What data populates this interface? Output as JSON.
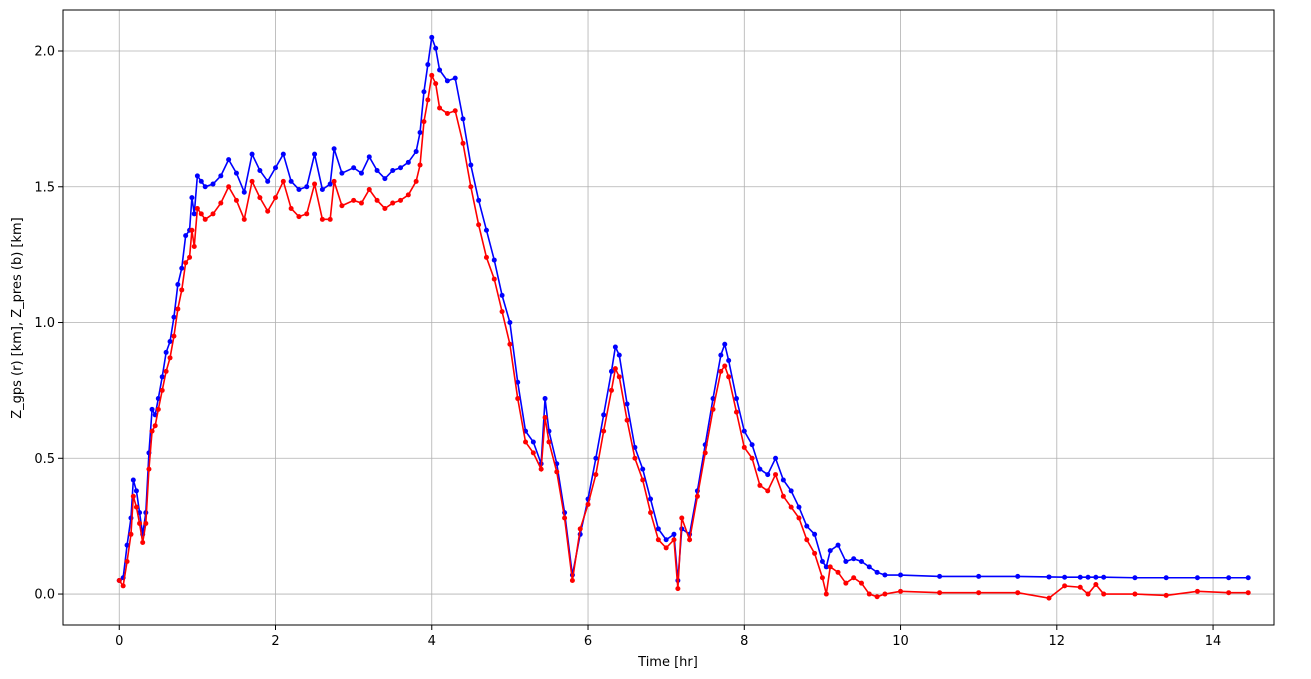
{
  "chart_data": {
    "type": "line",
    "xlabel": "Time [hr]",
    "ylabel": "Z_gps (r) [km], Z_pres (b) [km]",
    "x": [
      0,
      0.05,
      0.1,
      0.15,
      0.18,
      0.22,
      0.26,
      0.3,
      0.34,
      0.38,
      0.42,
      0.46,
      0.5,
      0.55,
      0.6,
      0.65,
      0.7,
      0.75,
      0.8,
      0.85,
      0.9,
      0.93,
      0.96,
      1.0,
      1.05,
      1.1,
      1.2,
      1.3,
      1.4,
      1.5,
      1.6,
      1.7,
      1.8,
      1.9,
      2.0,
      2.1,
      2.2,
      2.3,
      2.4,
      2.5,
      2.6,
      2.7,
      2.75,
      2.85,
      3.0,
      3.1,
      3.2,
      3.3,
      3.4,
      3.5,
      3.6,
      3.7,
      3.8,
      3.85,
      3.9,
      3.95,
      4.0,
      4.05,
      4.1,
      4.2,
      4.3,
      4.4,
      4.5,
      4.6,
      4.7,
      4.8,
      4.9,
      5.0,
      5.1,
      5.2,
      5.3,
      5.4,
      5.45,
      5.5,
      5.6,
      5.7,
      5.8,
      5.9,
      6.0,
      6.1,
      6.2,
      6.3,
      6.35,
      6.4,
      6.5,
      6.6,
      6.7,
      6.8,
      6.9,
      7.0,
      7.1,
      7.15,
      7.2,
      7.3,
      7.4,
      7.5,
      7.6,
      7.7,
      7.75,
      7.8,
      7.9,
      8.0,
      8.1,
      8.2,
      8.3,
      8.4,
      8.5,
      8.6,
      8.7,
      8.8,
      8.9,
      9.0,
      9.05,
      9.1,
      9.2,
      9.3,
      9.4,
      9.5,
      9.6,
      9.7,
      9.8,
      10.0,
      10.5,
      11.0,
      11.5,
      11.9,
      12.1,
      12.3,
      12.4,
      12.5,
      12.6,
      13.0,
      13.4,
      13.8,
      14.2,
      14.45
    ],
    "series": [
      {
        "color": "#0000ff",
        "values": [
          0.05,
          0.06,
          0.18,
          0.28,
          0.42,
          0.38,
          0.3,
          0.22,
          0.3,
          0.52,
          0.68,
          0.66,
          0.72,
          0.8,
          0.89,
          0.93,
          1.02,
          1.14,
          1.2,
          1.32,
          1.34,
          1.46,
          1.4,
          1.54,
          1.52,
          1.5,
          1.51,
          1.54,
          1.6,
          1.55,
          1.48,
          1.62,
          1.56,
          1.52,
          1.57,
          1.62,
          1.52,
          1.49,
          1.5,
          1.62,
          1.49,
          1.51,
          1.64,
          1.55,
          1.57,
          1.55,
          1.61,
          1.56,
          1.53,
          1.56,
          1.57,
          1.59,
          1.63,
          1.7,
          1.85,
          1.95,
          2.05,
          2.01,
          1.93,
          1.89,
          1.9,
          1.75,
          1.58,
          1.45,
          1.34,
          1.23,
          1.1,
          1.0,
          0.78,
          0.6,
          0.56,
          0.48,
          0.72,
          0.6,
          0.48,
          0.3,
          0.07,
          0.22,
          0.35,
          0.5,
          0.66,
          0.82,
          0.91,
          0.88,
          0.7,
          0.54,
          0.46,
          0.35,
          0.24,
          0.2,
          0.22,
          0.05,
          0.24,
          0.22,
          0.38,
          0.55,
          0.72,
          0.88,
          0.92,
          0.86,
          0.72,
          0.6,
          0.55,
          0.46,
          0.44,
          0.5,
          0.42,
          0.38,
          0.32,
          0.25,
          0.22,
          0.12,
          0.1,
          0.16,
          0.18,
          0.12,
          0.13,
          0.12,
          0.1,
          0.08,
          0.07,
          0.07,
          0.065,
          0.065,
          0.065,
          0.063,
          0.062,
          0.062,
          0.062,
          0.062,
          0.062,
          0.06,
          0.06,
          0.06,
          0.06,
          0.06
        ]
      },
      {
        "color": "#ff0000",
        "values": [
          0.05,
          0.03,
          0.12,
          0.22,
          0.36,
          0.32,
          0.26,
          0.19,
          0.26,
          0.46,
          0.6,
          0.62,
          0.68,
          0.75,
          0.82,
          0.87,
          0.95,
          1.05,
          1.12,
          1.22,
          1.24,
          1.34,
          1.28,
          1.42,
          1.4,
          1.38,
          1.4,
          1.44,
          1.5,
          1.45,
          1.38,
          1.52,
          1.46,
          1.41,
          1.46,
          1.52,
          1.42,
          1.39,
          1.4,
          1.51,
          1.38,
          1.38,
          1.52,
          1.43,
          1.45,
          1.44,
          1.49,
          1.45,
          1.42,
          1.44,
          1.45,
          1.47,
          1.52,
          1.58,
          1.74,
          1.82,
          1.91,
          1.88,
          1.79,
          1.77,
          1.78,
          1.66,
          1.5,
          1.36,
          1.24,
          1.16,
          1.04,
          0.92,
          0.72,
          0.56,
          0.52,
          0.46,
          0.65,
          0.56,
          0.45,
          0.28,
          0.05,
          0.24,
          0.33,
          0.44,
          0.6,
          0.75,
          0.83,
          0.8,
          0.64,
          0.5,
          0.42,
          0.3,
          0.2,
          0.17,
          0.2,
          0.02,
          0.28,
          0.2,
          0.36,
          0.52,
          0.68,
          0.82,
          0.84,
          0.8,
          0.67,
          0.54,
          0.5,
          0.4,
          0.38,
          0.44,
          0.36,
          0.32,
          0.28,
          0.2,
          0.15,
          0.06,
          0.0,
          0.1,
          0.08,
          0.04,
          0.06,
          0.04,
          0.0,
          -0.01,
          0.0,
          0.01,
          0.005,
          0.005,
          0.005,
          -0.015,
          0.03,
          0.025,
          0.0,
          0.035,
          0.0,
          0.0,
          -0.005,
          0.01,
          0.005,
          0.005
        ]
      }
    ],
    "xlim": [
      -0.72,
      14.78
    ],
    "xticks": [
      0,
      2,
      4,
      6,
      8,
      10,
      12,
      14
    ],
    "ylim": [
      -0.114,
      2.151
    ],
    "yticks": [
      {
        "value": 0,
        "label": "0.0"
      },
      {
        "value": 0.5,
        "label": "0.5"
      },
      {
        "value": 1,
        "label": "1.0"
      },
      {
        "value": 1.5,
        "label": "1.5"
      },
      {
        "value": 2,
        "label": "2.0"
      }
    ],
    "grid": true,
    "markers": true
  }
}
